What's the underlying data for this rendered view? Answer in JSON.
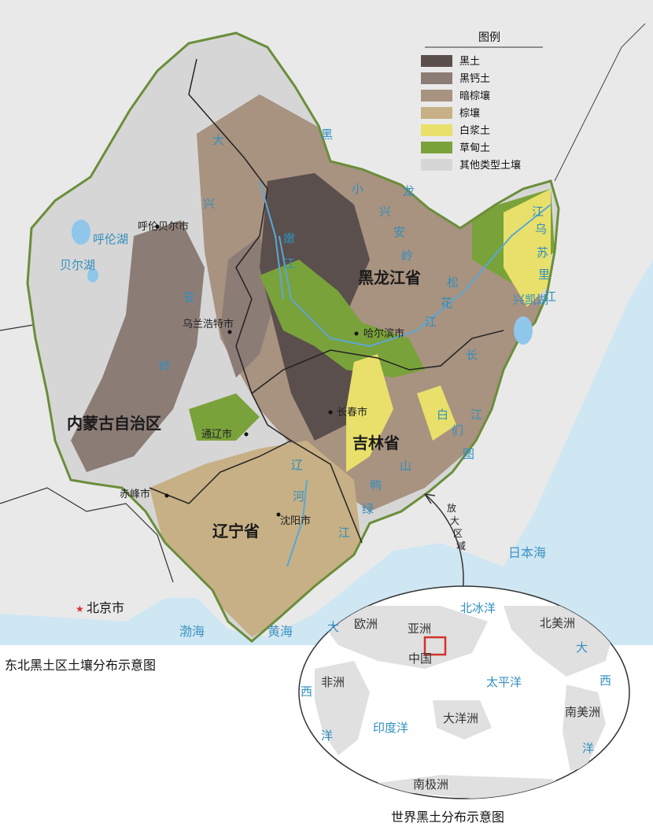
{
  "legend": {
    "title": "图例",
    "items": [
      {
        "label": "黑土",
        "color": "#5a4f4c"
      },
      {
        "label": "黑钙土",
        "color": "#8c7c76"
      },
      {
        "label": "暗棕壤",
        "color": "#a89280"
      },
      {
        "label": "棕壤",
        "color": "#c7b085"
      },
      {
        "label": "白浆土",
        "color": "#e8e06a"
      },
      {
        "label": "草甸土",
        "color": "#7aa23a"
      },
      {
        "label": "其他类型土壤",
        "color": "#d6d6d6"
      }
    ]
  },
  "map": {
    "caption": "东北黑土区土壤分布示意图",
    "provinces": {
      "heilongjiang": "黑龙江省",
      "jilin": "吉林省",
      "liaoning": "辽宁省",
      "neimenggu": "内蒙古自治区"
    },
    "cities": {
      "hulunbeier": "呼伦贝尔市",
      "wulanhaote": "乌兰浩特市",
      "haerbin": "哈尔滨市",
      "changchun": "长春市",
      "tongliao": "通辽市",
      "chifeng": "赤峰市",
      "shenyang": "沈阳市",
      "beijing": "北京市"
    },
    "ranges": {
      "dxal": [
        "大",
        "兴",
        "安",
        "岭"
      ],
      "xxal": [
        "小",
        "兴",
        "安",
        "岭"
      ],
      "cbs": [
        "长",
        "白",
        "山"
      ]
    },
    "rivers": {
      "hlj": [
        "黑",
        "龙",
        "江"
      ],
      "nj": [
        "嫩",
        "江"
      ],
      "shj": [
        "松",
        "花",
        "江"
      ],
      "wsl": [
        "乌",
        "苏",
        "里",
        "江"
      ],
      "tmj": [
        "图",
        "们",
        "江"
      ],
      "lh": [
        "辽",
        "河"
      ],
      "ylj": [
        "鸭",
        "绿",
        "江"
      ]
    },
    "lakes": {
      "hulun": "呼伦湖",
      "buir": "贝尔湖",
      "xingkai": "兴凯湖"
    },
    "seas": {
      "bohai": "渤海",
      "huanghai": "黄海",
      "riben": "日本海"
    },
    "zoom_label": [
      "放",
      "大",
      "区",
      "域"
    ]
  },
  "world": {
    "caption": "世界黑土分布示意图",
    "continents": {
      "europe": "欧洲",
      "asia": "亚洲",
      "china": "中国",
      "africa": "非洲",
      "oceania": "大洋洲",
      "north_america": "北美洲",
      "south_america": "南美洲",
      "antarctica": "南极洲"
    },
    "oceans": {
      "arctic": "北冰洋",
      "pacific": "太平洋",
      "indian": "印度洋",
      "da_left": "大",
      "xi_left": "西",
      "yang_left": "洋",
      "da_right": "大",
      "xi_right": "西",
      "yang_right": "洋"
    }
  }
}
